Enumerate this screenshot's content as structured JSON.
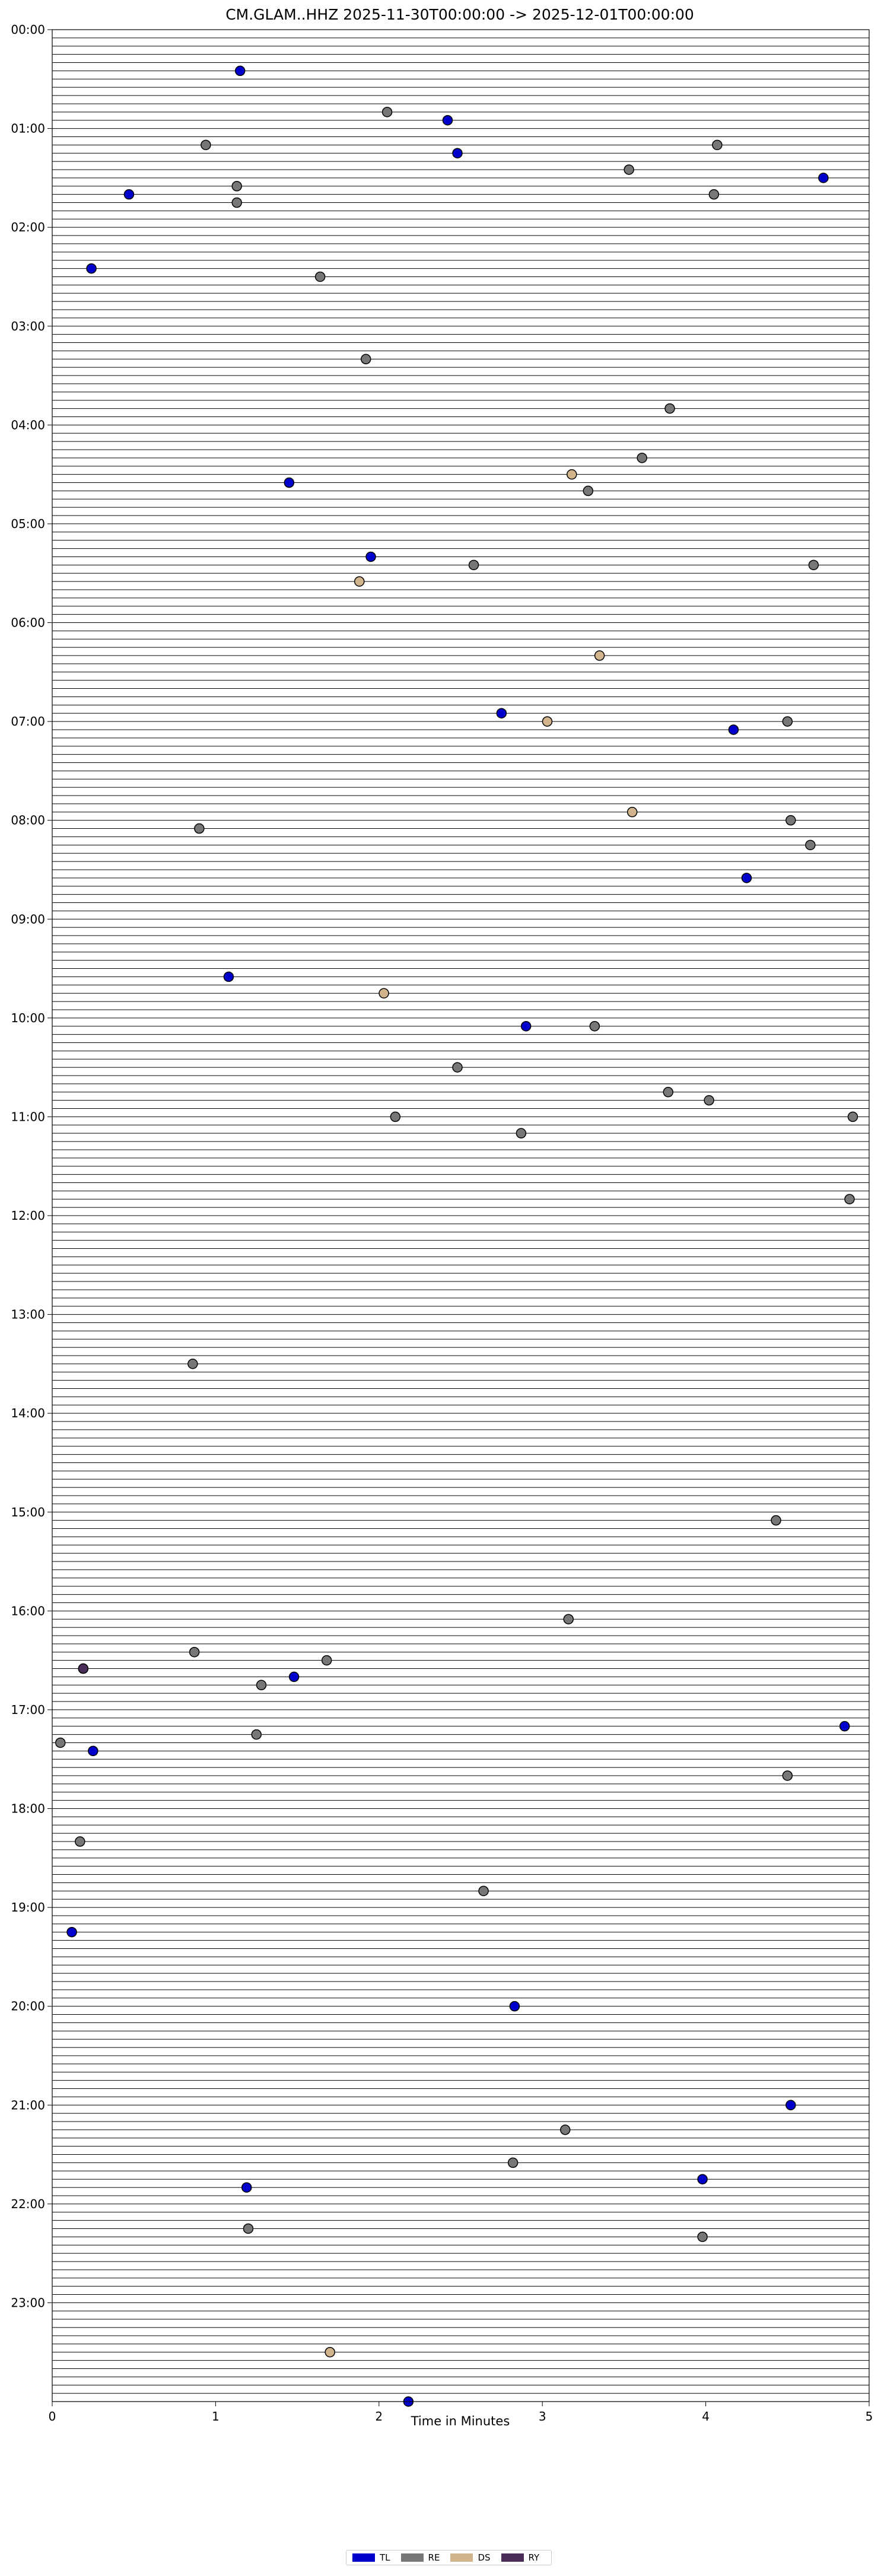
{
  "chart_data": {
    "type": "scatter",
    "title": "CM.GLAM..HHZ  2025-11-30T00:00:00 -> 2025-12-01T00:00:00",
    "xlabel": "Time in Minutes",
    "ylabel": "",
    "xlim": [
      0,
      5
    ],
    "ylim_minutes": [
      0,
      1440
    ],
    "x_ticks": [
      "0",
      "1",
      "2",
      "3",
      "4",
      "5"
    ],
    "y_ticks": [
      "00:00",
      "01:00",
      "02:00",
      "03:00",
      "04:00",
      "05:00",
      "06:00",
      "07:00",
      "08:00",
      "09:00",
      "10:00",
      "11:00",
      "12:00",
      "13:00",
      "14:00",
      "15:00",
      "16:00",
      "17:00",
      "18:00",
      "19:00",
      "20:00",
      "21:00",
      "22:00",
      "23:00"
    ],
    "trace_interval_minutes": 5,
    "legend_placement": "bottom-center",
    "series": [
      {
        "name": "TL",
        "color": "#0000cc",
        "points": [
          {
            "x": 1.15,
            "y": 25
          },
          {
            "x": 2.42,
            "y": 55
          },
          {
            "x": 2.48,
            "y": 75
          },
          {
            "x": 0.47,
            "y": 100
          },
          {
            "x": 4.72,
            "y": 90
          },
          {
            "x": 0.24,
            "y": 145
          },
          {
            "x": 1.45,
            "y": 275
          },
          {
            "x": 1.95,
            "y": 320
          },
          {
            "x": 2.75,
            "y": 415
          },
          {
            "x": 4.17,
            "y": 425
          },
          {
            "x": 4.25,
            "y": 515
          },
          {
            "x": 1.08,
            "y": 575
          },
          {
            "x": 2.9,
            "y": 605
          },
          {
            "x": 1.48,
            "y": 1000
          },
          {
            "x": 4.85,
            "y": 1030
          },
          {
            "x": 0.25,
            "y": 1045
          },
          {
            "x": 0.12,
            "y": 1155
          },
          {
            "x": 2.83,
            "y": 1200
          },
          {
            "x": 4.52,
            "y": 1260
          },
          {
            "x": 3.98,
            "y": 1305
          },
          {
            "x": 1.19,
            "y": 1310
          },
          {
            "x": 2.18,
            "y": 1440
          }
        ]
      },
      {
        "name": "RE",
        "color": "#777777",
        "points": [
          {
            "x": 2.05,
            "y": 50
          },
          {
            "x": 0.94,
            "y": 70
          },
          {
            "x": 4.07,
            "y": 70
          },
          {
            "x": 3.53,
            "y": 85
          },
          {
            "x": 1.13,
            "y": 95
          },
          {
            "x": 4.05,
            "y": 100
          },
          {
            "x": 1.13,
            "y": 105
          },
          {
            "x": 1.64,
            "y": 150
          },
          {
            "x": 1.92,
            "y": 200
          },
          {
            "x": 3.78,
            "y": 230
          },
          {
            "x": 3.61,
            "y": 260
          },
          {
            "x": 3.28,
            "y": 280
          },
          {
            "x": 2.58,
            "y": 325
          },
          {
            "x": 4.66,
            "y": 325
          },
          {
            "x": 4.5,
            "y": 420
          },
          {
            "x": 0.9,
            "y": 485
          },
          {
            "x": 4.52,
            "y": 480
          },
          {
            "x": 4.64,
            "y": 495
          },
          {
            "x": 3.32,
            "y": 605
          },
          {
            "x": 2.48,
            "y": 630
          },
          {
            "x": 3.77,
            "y": 645
          },
          {
            "x": 4.02,
            "y": 650
          },
          {
            "x": 2.1,
            "y": 660
          },
          {
            "x": 4.9,
            "y": 660
          },
          {
            "x": 2.87,
            "y": 670
          },
          {
            "x": 4.88,
            "y": 710
          },
          {
            "x": 0.86,
            "y": 810
          },
          {
            "x": 4.43,
            "y": 905
          },
          {
            "x": 3.16,
            "y": 965
          },
          {
            "x": 0.87,
            "y": 985
          },
          {
            "x": 1.68,
            "y": 990
          },
          {
            "x": 0.19,
            "y": 995
          },
          {
            "x": 1.28,
            "y": 1005
          },
          {
            "x": 1.25,
            "y": 1035
          },
          {
            "x": 0.05,
            "y": 1040
          },
          {
            "x": 4.5,
            "y": 1060
          },
          {
            "x": 0.17,
            "y": 1100
          },
          {
            "x": 2.64,
            "y": 1130
          },
          {
            "x": 3.14,
            "y": 1275
          },
          {
            "x": 2.82,
            "y": 1295
          },
          {
            "x": 1.2,
            "y": 1335
          },
          {
            "x": 3.98,
            "y": 1340
          }
        ]
      },
      {
        "name": "DS",
        "color": "#d2b48c",
        "points": [
          {
            "x": 3.18,
            "y": 270
          },
          {
            "x": 1.88,
            "y": 335
          },
          {
            "x": 3.35,
            "y": 380
          },
          {
            "x": 3.03,
            "y": 420
          },
          {
            "x": 3.55,
            "y": 475
          },
          {
            "x": 2.03,
            "y": 585
          },
          {
            "x": 1.7,
            "y": 1410
          }
        ]
      },
      {
        "name": "RY",
        "color": "#4b2d5a",
        "points": [
          {
            "x": 0.19,
            "y": 995
          }
        ]
      }
    ]
  }
}
